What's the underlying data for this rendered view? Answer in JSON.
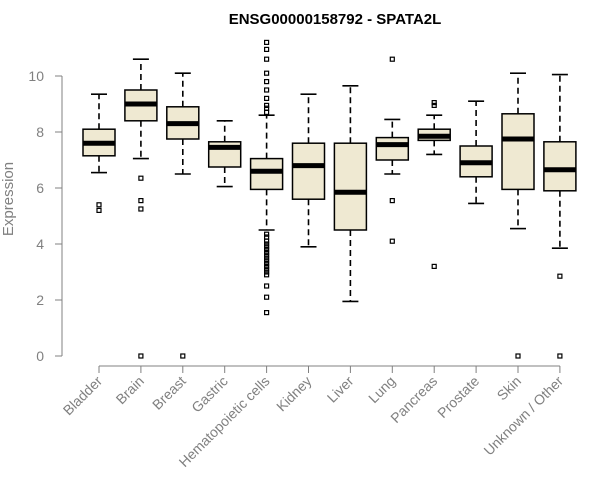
{
  "chart_data": {
    "type": "boxplot",
    "title": "ENSG00000158792 - SPATA2L",
    "ylabel": "Expression",
    "xlabel": "",
    "ylim": [
      0,
      11
    ],
    "yticks": [
      0,
      2,
      4,
      6,
      8,
      10
    ],
    "grid": false,
    "colors": {
      "box_fill": "#efe9d2",
      "stroke": "#000000",
      "axis": "#808080"
    },
    "categories": [
      "Bladder",
      "Brain",
      "Breast",
      "Gastric",
      "Hematopoietic cells",
      "Kidney",
      "Liver",
      "Lung",
      "Pancreas",
      "Prostate",
      "Skin",
      "Unknown / Other"
    ],
    "boxes": [
      {
        "category": "Bladder",
        "whisker_low": 6.55,
        "q1": 7.15,
        "median": 7.6,
        "q3": 8.1,
        "whisker_high": 9.35,
        "outliers": [
          5.4,
          5.2
        ]
      },
      {
        "category": "Brain",
        "whisker_low": 7.05,
        "q1": 8.4,
        "median": 9.0,
        "q3": 9.5,
        "whisker_high": 10.6,
        "outliers": [
          6.35,
          5.55,
          5.25,
          0.0
        ]
      },
      {
        "category": "Breast",
        "whisker_low": 6.5,
        "q1": 7.75,
        "median": 8.3,
        "q3": 8.9,
        "whisker_high": 10.1,
        "outliers": [
          0.0
        ]
      },
      {
        "category": "Gastric",
        "whisker_low": 6.05,
        "q1": 6.75,
        "median": 7.45,
        "q3": 7.65,
        "whisker_high": 8.4,
        "outliers": []
      },
      {
        "category": "Hematopoietic cells",
        "whisker_low": 4.5,
        "q1": 5.95,
        "median": 6.6,
        "q3": 7.05,
        "whisker_high": 8.6,
        "outliers": [
          11.2,
          10.95,
          10.6,
          10.1,
          9.8,
          9.5,
          9.2,
          8.95,
          8.85,
          8.7,
          4.35,
          4.25,
          4.1,
          4.0,
          3.9,
          3.8,
          3.7,
          3.6,
          3.5,
          3.4,
          3.3,
          3.2,
          3.1,
          3.0,
          2.9,
          2.5,
          2.1,
          1.55
        ]
      },
      {
        "category": "Kidney",
        "whisker_low": 3.9,
        "q1": 5.6,
        "median": 6.8,
        "q3": 7.6,
        "whisker_high": 9.35,
        "outliers": []
      },
      {
        "category": "Liver",
        "whisker_low": 1.95,
        "q1": 4.5,
        "median": 5.85,
        "q3": 7.6,
        "whisker_high": 9.65,
        "outliers": []
      },
      {
        "category": "Lung",
        "whisker_low": 6.5,
        "q1": 7.0,
        "median": 7.55,
        "q3": 7.8,
        "whisker_high": 8.45,
        "outliers": [
          10.6,
          5.55,
          4.1
        ]
      },
      {
        "category": "Pancreas",
        "whisker_low": 7.2,
        "q1": 7.7,
        "median": 7.85,
        "q3": 8.1,
        "whisker_high": 8.6,
        "outliers": [
          9.05,
          8.95,
          3.2
        ]
      },
      {
        "category": "Prostate",
        "whisker_low": 5.45,
        "q1": 6.4,
        "median": 6.9,
        "q3": 7.5,
        "whisker_high": 9.1,
        "outliers": []
      },
      {
        "category": "Skin",
        "whisker_low": 4.55,
        "q1": 5.95,
        "median": 7.75,
        "q3": 8.65,
        "whisker_high": 10.1,
        "outliers": [
          0.0
        ]
      },
      {
        "category": "Unknown / Other",
        "whisker_low": 3.85,
        "q1": 5.9,
        "median": 6.65,
        "q3": 7.65,
        "whisker_high": 10.05,
        "outliers": [
          2.85,
          0.0
        ]
      }
    ]
  }
}
